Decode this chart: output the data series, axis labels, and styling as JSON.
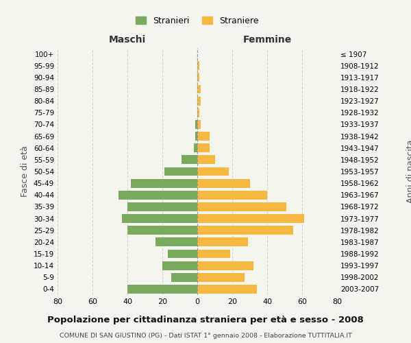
{
  "age_groups": [
    "0-4",
    "5-9",
    "10-14",
    "15-19",
    "20-24",
    "25-29",
    "30-34",
    "35-39",
    "40-44",
    "45-49",
    "50-54",
    "55-59",
    "60-64",
    "65-69",
    "70-74",
    "75-79",
    "80-84",
    "85-89",
    "90-94",
    "95-99",
    "100+"
  ],
  "birth_years": [
    "2003-2007",
    "1998-2002",
    "1993-1997",
    "1988-1992",
    "1983-1987",
    "1978-1982",
    "1973-1977",
    "1968-1972",
    "1963-1967",
    "1958-1962",
    "1953-1957",
    "1948-1952",
    "1943-1947",
    "1938-1942",
    "1933-1937",
    "1928-1932",
    "1923-1927",
    "1918-1922",
    "1913-1917",
    "1908-1912",
    "≤ 1907"
  ],
  "maschi": [
    40,
    15,
    20,
    17,
    24,
    40,
    43,
    40,
    45,
    38,
    19,
    9,
    2,
    1,
    1,
    0,
    0,
    0,
    0,
    0,
    0
  ],
  "femmine": [
    34,
    27,
    32,
    19,
    29,
    55,
    61,
    51,
    40,
    30,
    18,
    10,
    7,
    7,
    2,
    1,
    2,
    2,
    1,
    1,
    0
  ],
  "color_maschi": "#7aaa5e",
  "color_femmine": "#f5b942",
  "title": "Popolazione per cittadinanza straniera per età e sesso - 2008",
  "subtitle": "COMUNE DI SAN GIUSTINO (PG) - Dati ISTAT 1° gennaio 2008 - Elaborazione TUTTITALIA.IT",
  "ylabel_left": "Fasce di età",
  "ylabel_right": "Anni di nascita",
  "xlim": 80,
  "legend_maschi": "Stranieri",
  "legend_femmine": "Straniere",
  "maschi_label": "Maschi",
  "femmine_label": "Femmine",
  "background_color": "#f5f5f0",
  "grid_color": "#d8d8d0"
}
